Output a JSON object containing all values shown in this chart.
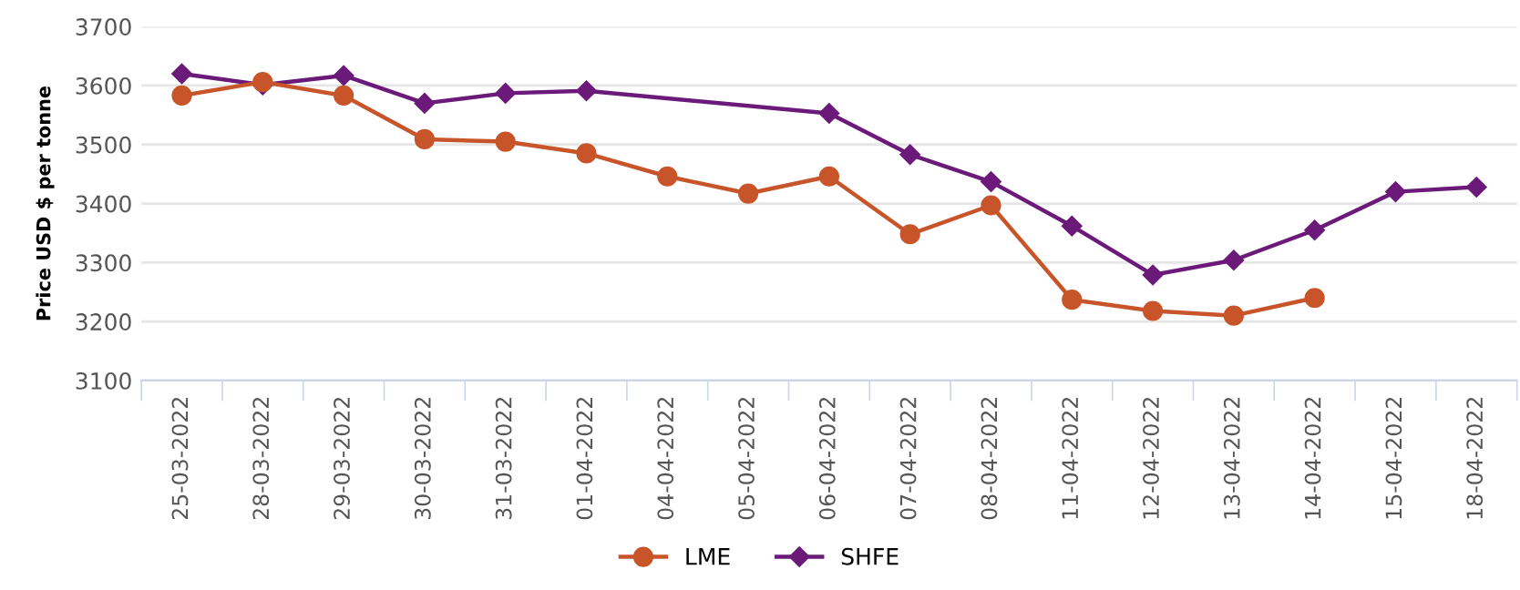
{
  "chart_data": {
    "type": "line",
    "ylabel": "Price USD $ per tonne",
    "categories": [
      "25-03-2022",
      "28-03-2022",
      "29-03-2022",
      "30-03-2022",
      "31-03-2022",
      "01-04-2022",
      "04-04-2022",
      "05-04-2022",
      "06-04-2022",
      "07-04-2022",
      "08-04-2022",
      "11-04-2022",
      "12-04-2022",
      "13-04-2022",
      "14-04-2022",
      "15-04-2022",
      "18-04-2022"
    ],
    "series": [
      {
        "name": "LME",
        "color": "#c8552a",
        "marker": "circle",
        "values": [
          3583,
          3606,
          3583,
          3509,
          3505,
          3485,
          3446,
          3417,
          3446,
          3348,
          3397,
          3237,
          3218,
          3210,
          3240,
          null,
          null
        ]
      },
      {
        "name": "SHFE",
        "color": "#6b1a7a",
        "marker": "diamond",
        "values": [
          3620,
          3601,
          3617,
          3570,
          3587,
          3591,
          null,
          null,
          3553,
          3483,
          3437,
          3362,
          3279,
          3304,
          3355,
          3420,
          3428
        ]
      }
    ],
    "ylim": [
      3100,
      3700
    ],
    "yticks": [
      3100,
      3200,
      3300,
      3400,
      3500,
      3600,
      3700
    ],
    "grid": "y",
    "legend": "bottom"
  }
}
